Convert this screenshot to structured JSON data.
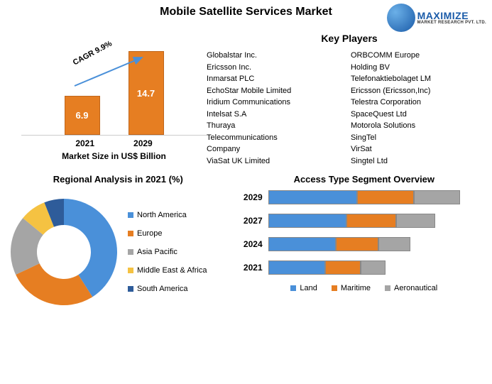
{
  "title": "Mobile Satellite Services Market",
  "logo": {
    "main": "MAXIMIZE",
    "sub": "MARKET RESEARCH PVT. LTD."
  },
  "cagr_label": "CAGR 9.9%",
  "bar_chart": {
    "type": "bar",
    "bars": [
      {
        "year": "2021",
        "value": "6.9",
        "height": 55
      },
      {
        "year": "2029",
        "value": "14.7",
        "height": 118
      }
    ],
    "bar_fill": "#e67e22",
    "bar_border": "#c0661b",
    "arrow_color": "#4a90d9",
    "subtitle": "Market Size in US$ Billion"
  },
  "key_players": {
    "title": "Key Players",
    "col1": [
      "Globalstar Inc.",
      "Ericsson Inc.",
      "Inmarsat PLC",
      "EchoStar Mobile Limited",
      "Iridium Communications",
      "Intelsat S.A",
      "Thuraya",
      "Telecommunications",
      "Company",
      "ViaSat UK Limited"
    ],
    "col2": [
      "ORBCOMM Europe",
      "Holding BV",
      "Telefonaktiebolaget LM",
      "Ericsson (Ericsson,Inc)",
      "Telestra Corporation",
      "SpaceQuest Ltd",
      "Motorola Solutions",
      "SingTel",
      "VirSat",
      "Singtel Ltd"
    ]
  },
  "regional": {
    "title": "Regional Analysis in 2021 (%)",
    "slices": [
      {
        "label": "North America",
        "value": 41,
        "color": "#4a90d9"
      },
      {
        "label": "Europe",
        "value": 27,
        "color": "#e67e22"
      },
      {
        "label": "Asia Pacific",
        "value": 18,
        "color": "#a5a5a5"
      },
      {
        "label": "Middle East & Africa",
        "value": 8,
        "color": "#f5c242"
      },
      {
        "label": "South America",
        "value": 6,
        "color": "#2e5c9a"
      }
    ],
    "donut_hole": "#ffffff"
  },
  "access": {
    "title": "Access Type Segment Overview",
    "years": [
      "2029",
      "2027",
      "2024",
      "2021"
    ],
    "series": [
      {
        "label": "Land",
        "color": "#4a90d9"
      },
      {
        "label": "Maritime",
        "color": "#e67e22"
      },
      {
        "label": "Aeronautical",
        "color": "#a5a5a5"
      }
    ],
    "stacks": {
      "2029": [
        125,
        80,
        65
      ],
      "2027": [
        110,
        70,
        55
      ],
      "2024": [
        95,
        60,
        45
      ],
      "2021": [
        80,
        50,
        35
      ]
    }
  }
}
